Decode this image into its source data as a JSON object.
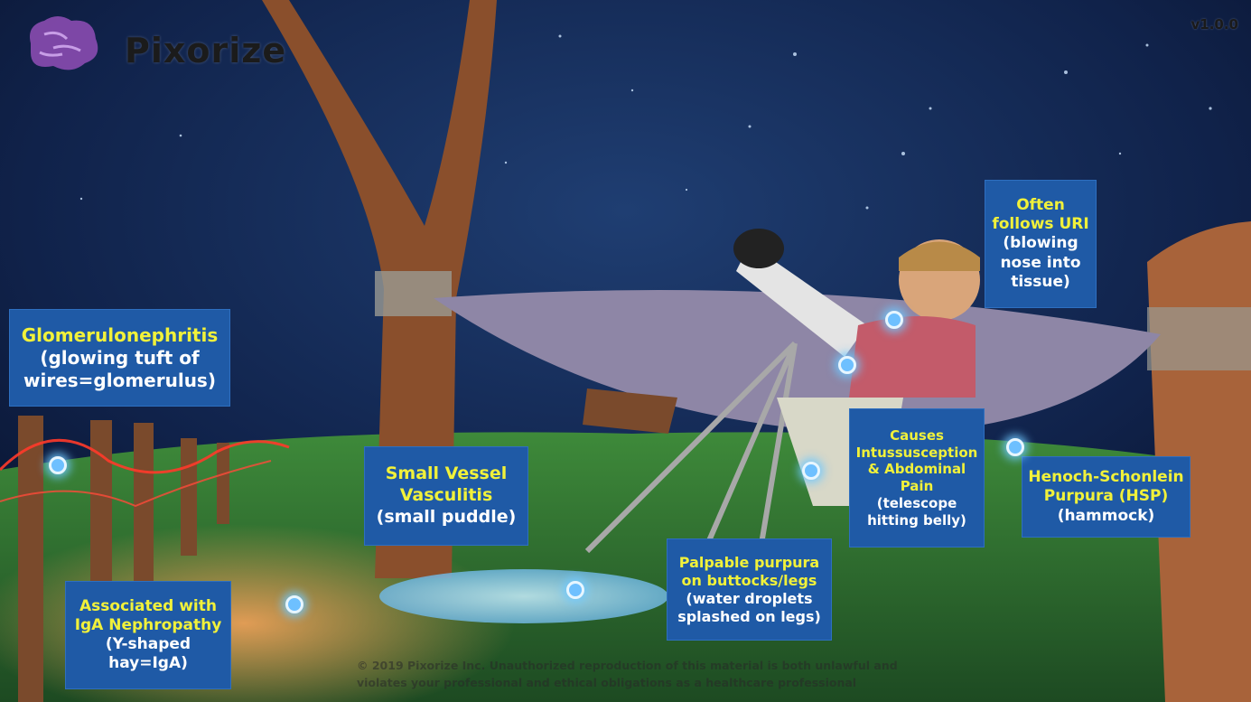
{
  "app": {
    "brand": "Pixorize",
    "version": "v1.0.0",
    "copyright_line1": "© 2019 Pixorize Inc. Unauthorized reproduction of this material is both unlawful and",
    "copyright_line2": "violates your professional and ethical obligations as a healthcare professional"
  },
  "colors": {
    "label_bg": "#1f5aa6",
    "highlight_text": "#f1f13a",
    "hotspot": "#6ec0ff"
  },
  "labels": {
    "glomerulonephritis": {
      "title": "Glomerulonephritis",
      "detail": "(glowing tuft of wires=glomerulus)"
    },
    "small_vessel": {
      "title": "Small Vessel Vasculitis",
      "detail": "(small puddle)"
    },
    "iga": {
      "title": "Associated with IgA Nephropathy",
      "detail": "(Y-shaped hay=IgA)"
    },
    "uri": {
      "title": "Often follows URI",
      "detail": "(blowing nose into tissue)"
    },
    "intussusception": {
      "title": "Causes Intussusception & Abdominal Pain",
      "detail": "(telescope hitting belly)"
    },
    "hsp": {
      "title": "Henoch-Schonlein Purpura (HSP)",
      "detail": "(hammock)"
    },
    "purpura": {
      "title": "Palpable purpura on buttocks/legs",
      "detail": "(water droplets splashed on legs)"
    }
  }
}
